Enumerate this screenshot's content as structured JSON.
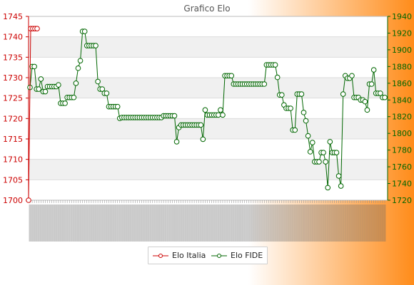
{
  "page": {
    "title": "Grafico Elo"
  },
  "colors": {
    "italia": "#cc0000",
    "fide": "#006600",
    "grid_band": "#f0f0f0",
    "plot_bg": "#ffffff",
    "gradient_start": "#ffffff",
    "gradient_end": "#ff8c1a"
  },
  "chart_data": {
    "type": "line",
    "title": "Grafico Elo",
    "xlabel": "",
    "ylabel": "",
    "y_left": {
      "min": 1700,
      "max": 1745,
      "ticks": [
        1700,
        1705,
        1710,
        1715,
        1720,
        1725,
        1730,
        1735,
        1740,
        1745
      ]
    },
    "y_right": {
      "min": 1720,
      "max": 1940,
      "ticks": [
        1720,
        1740,
        1760,
        1780,
        1800,
        1820,
        1840,
        1860,
        1880,
        1900,
        1920,
        1940
      ]
    },
    "grid": "horizontal bands",
    "legend_placement": "bottom-center",
    "series": [
      {
        "name": "Elo Italia",
        "axis": "left",
        "values": [
          1700,
          1742,
          1742,
          1742,
          1742
        ]
      },
      {
        "name": "Elo FIDE",
        "axis": "right",
        "values": [
          1855,
          1880,
          1880,
          1853,
          1853,
          1865,
          1850,
          1850,
          1856,
          1856,
          1856,
          1856,
          1856,
          1858,
          1836,
          1836,
          1836,
          1843,
          1843,
          1843,
          1843,
          1860,
          1878,
          1887,
          1922,
          1922,
          1905,
          1905,
          1905,
          1905,
          1905,
          1862,
          1853,
          1853,
          1848,
          1848,
          1832,
          1832,
          1832,
          1832,
          1832,
          1818,
          1819,
          1819,
          1819,
          1819,
          1819,
          1819,
          1819,
          1819,
          1819,
          1819,
          1819,
          1819,
          1819,
          1819,
          1819,
          1819,
          1819,
          1819,
          1819,
          1821,
          1821,
          1821,
          1821,
          1821,
          1821,
          1790,
          1807,
          1810,
          1810,
          1810,
          1810,
          1810,
          1810,
          1810,
          1810,
          1810,
          1810,
          1793,
          1828,
          1822,
          1822,
          1822,
          1822,
          1822,
          1822,
          1828,
          1822,
          1869,
          1869,
          1869,
          1869,
          1859,
          1859,
          1859,
          1859,
          1859,
          1859,
          1859,
          1859,
          1859,
          1859,
          1859,
          1859,
          1859,
          1859,
          1859,
          1882,
          1882,
          1882,
          1882,
          1882,
          1867,
          1846,
          1846,
          1834,
          1830,
          1830,
          1830,
          1804,
          1804,
          1847,
          1847,
          1847,
          1825,
          1815,
          1797,
          1778,
          1789,
          1766,
          1766,
          1766,
          1777,
          1777,
          1766,
          1735,
          1790,
          1777,
          1777,
          1777,
          1749,
          1737,
          1847,
          1869,
          1866,
          1866,
          1869,
          1843,
          1843,
          1843,
          1840,
          1840,
          1838,
          1828,
          1859,
          1859,
          1876,
          1848,
          1848,
          1848,
          1843,
          1843
        ]
      }
    ]
  },
  "legend": [
    {
      "label": "Elo Italia",
      "color": "#cc0000"
    },
    {
      "label": "Elo FIDE",
      "color": "#006600"
    }
  ]
}
